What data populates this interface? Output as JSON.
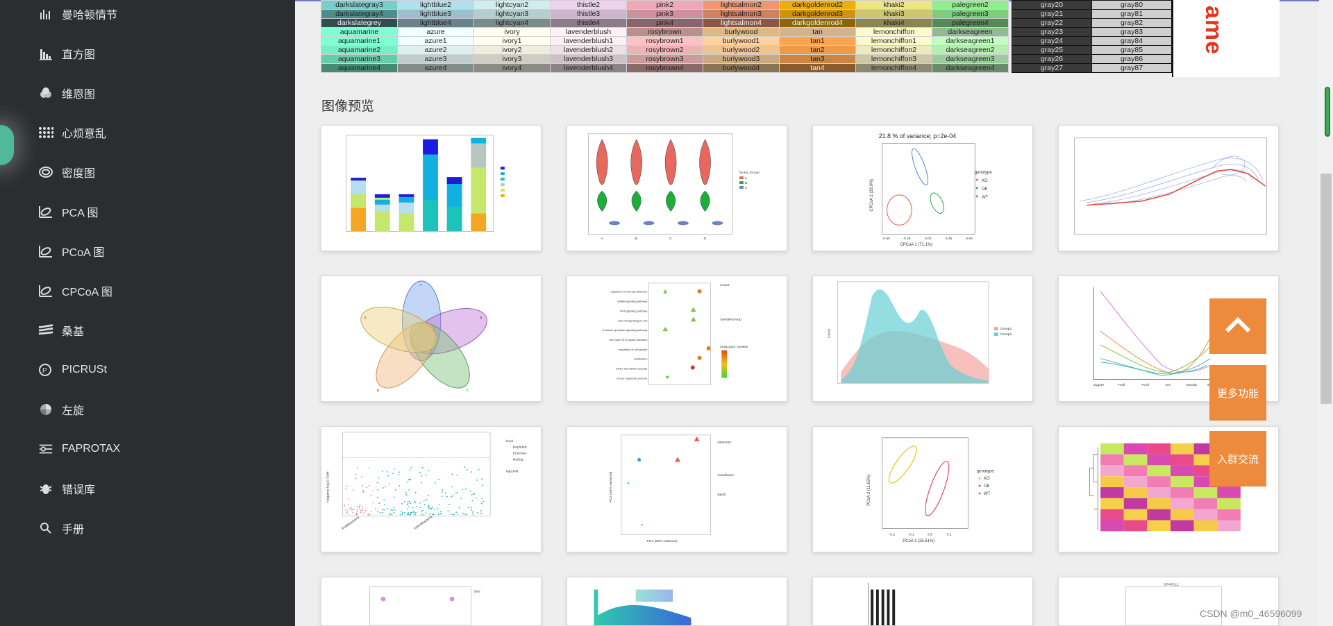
{
  "sidebar": {
    "items": [
      {
        "label": "曼哈顿情节",
        "icon": "manhattan-icon"
      },
      {
        "label": "直方图",
        "icon": "histogram-icon"
      },
      {
        "label": "维恩图",
        "icon": "venn-icon"
      },
      {
        "label": "心烦意乱",
        "icon": "upset-icon"
      },
      {
        "label": "密度图",
        "icon": "density-icon"
      },
      {
        "label": "PCA 图",
        "icon": "pca-icon"
      },
      {
        "label": "PCoA 图",
        "icon": "pcoa-icon"
      },
      {
        "label": "CPCoA 图",
        "icon": "cpcoa-icon"
      },
      {
        "label": "桑基",
        "icon": "sankey-icon"
      },
      {
        "label": "PICRUSt",
        "icon": "picrust-icon"
      },
      {
        "label": "左旋",
        "icon": "circos-icon"
      },
      {
        "label": "FAPROTAX",
        "icon": "faprotax-icon"
      },
      {
        "label": "错误库",
        "icon": "bug-icon"
      },
      {
        "label": "手册",
        "icon": "search-icon"
      }
    ]
  },
  "color_table": {
    "rows": [
      [
        {
          "t": "darkslategray3",
          "c": "#79cdcd"
        },
        {
          "t": "lightblue2",
          "c": "#b2dfee"
        },
        {
          "t": "lightcyan2",
          "c": "#d1eeee"
        },
        {
          "t": "thistle2",
          "c": "#eed2ee"
        },
        {
          "t": "pink2",
          "c": "#eea9b8"
        },
        {
          "t": "lightsalmon2",
          "c": "#ee9572"
        },
        {
          "t": "darkgoldenrod2",
          "c": "#eead0e"
        },
        {
          "t": "khaki2",
          "c": "#eee685"
        },
        {
          "t": "palegreen2",
          "c": "#90ee90"
        }
      ],
      [
        {
          "t": "darkslategray4",
          "c": "#528b8b"
        },
        {
          "t": "lightblue3",
          "c": "#9ac0cd"
        },
        {
          "t": "lightcyan3",
          "c": "#b4cdcd"
        },
        {
          "t": "thistle3",
          "c": "#cdb5cd"
        },
        {
          "t": "pink3",
          "c": "#cd919e"
        },
        {
          "t": "lightsalmon3",
          "c": "#cd8162"
        },
        {
          "t": "darkgoldenrod3",
          "c": "#cd950c"
        },
        {
          "t": "khaki3",
          "c": "#cdc673"
        },
        {
          "t": "palegreen3",
          "c": "#7ccd7c"
        }
      ],
      [
        {
          "t": "darkslategrey",
          "c": "#2f4f4f"
        },
        {
          "t": "lightblue4",
          "c": "#68838b"
        },
        {
          "t": "lightcyan4",
          "c": "#7a8b8b"
        },
        {
          "t": "thistle4",
          "c": "#8b7b8b"
        },
        {
          "t": "pink4",
          "c": "#8b636c"
        },
        {
          "t": "lightsalmon4",
          "c": "#8b5742"
        },
        {
          "t": "darkgoldenrod4",
          "c": "#8b6508"
        },
        {
          "t": "khaki4",
          "c": "#8b864e"
        },
        {
          "t": "palegreen4",
          "c": "#548b54"
        }
      ],
      [
        {
          "t": "aquamarine",
          "c": "#7fffd4"
        },
        {
          "t": "azure",
          "c": "#f0ffff"
        },
        {
          "t": "ivory",
          "c": "#fffff0"
        },
        {
          "t": "lavenderblush",
          "c": "#fff0f5"
        },
        {
          "t": "rosybrown",
          "c": "#bc8f8f"
        },
        {
          "t": "burlywood",
          "c": "#deb887"
        },
        {
          "t": "tan",
          "c": "#d2b48c"
        },
        {
          "t": "lemonchiffon",
          "c": "#fffacd"
        },
        {
          "t": "darkseagreen",
          "c": "#8fbc8f"
        }
      ],
      [
        {
          "t": "aquamarine1",
          "c": "#7fffd4"
        },
        {
          "t": "azure1",
          "c": "#f0ffff"
        },
        {
          "t": "ivory1",
          "c": "#fffff0"
        },
        {
          "t": "lavenderblush1",
          "c": "#fff0f5"
        },
        {
          "t": "rosybrown1",
          "c": "#ffc1c1"
        },
        {
          "t": "burlywood1",
          "c": "#ffd39b"
        },
        {
          "t": "tan1",
          "c": "#ffa54f"
        },
        {
          "t": "lemonchiffon1",
          "c": "#fffacd"
        },
        {
          "t": "darkseagreen1",
          "c": "#c1ffc1"
        }
      ],
      [
        {
          "t": "aquamarine2",
          "c": "#76eec6"
        },
        {
          "t": "azure2",
          "c": "#e0eeee"
        },
        {
          "t": "ivory2",
          "c": "#eeeee0"
        },
        {
          "t": "lavenderblush2",
          "c": "#eee0e5"
        },
        {
          "t": "rosybrown2",
          "c": "#eeb4b4"
        },
        {
          "t": "burlywood2",
          "c": "#eec591"
        },
        {
          "t": "tan2",
          "c": "#ee9a49"
        },
        {
          "t": "lemonchiffon2",
          "c": "#eee9bf"
        },
        {
          "t": "darkseagreen2",
          "c": "#b4eeb4"
        }
      ],
      [
        {
          "t": "aquamarine3",
          "c": "#66cdaa"
        },
        {
          "t": "azure3",
          "c": "#c1cdcd"
        },
        {
          "t": "ivory3",
          "c": "#cdcdc1"
        },
        {
          "t": "lavenderblush3",
          "c": "#cdc1c5"
        },
        {
          "t": "rosybrown3",
          "c": "#cd9b9b"
        },
        {
          "t": "burlywood3",
          "c": "#cdaa7d"
        },
        {
          "t": "tan3",
          "c": "#cd853f"
        },
        {
          "t": "lemonchiffon3",
          "c": "#cdc9a5"
        },
        {
          "t": "darkseagreen3",
          "c": "#9bcd9b"
        }
      ],
      [
        {
          "t": "aquamarine4",
          "c": "#458b74"
        },
        {
          "t": "azure4",
          "c": "#838b8b"
        },
        {
          "t": "ivory4",
          "c": "#8b8b83"
        },
        {
          "t": "lavenderblush4",
          "c": "#8b8386"
        },
        {
          "t": "rosybrown4",
          "c": "#8b6969"
        },
        {
          "t": "burlywood4",
          "c": "#8b7355"
        },
        {
          "t": "tan4",
          "c": "#8b5a2b"
        },
        {
          "t": "lemonchiffon4",
          "c": "#8b8970"
        },
        {
          "t": "darkseagreen4",
          "c": "#698b69"
        }
      ]
    ]
  },
  "gray_table": {
    "rows": [
      [
        "gray20",
        "gray80"
      ],
      [
        "gray21",
        "gray81"
      ],
      [
        "gray22",
        "gray82"
      ],
      [
        "gray23",
        "gray83"
      ],
      [
        "gray24",
        "gray84"
      ],
      [
        "gray25",
        "gray85"
      ],
      [
        "gray26",
        "gray86"
      ],
      [
        "gray27",
        "gray87"
      ]
    ]
  },
  "name_box_text": "ame",
  "section_title": "图像预览",
  "cards": {
    "c2": {
      "legend_title": "factor_Group",
      "legend": [
        "A",
        "B",
        "C"
      ],
      "xticks": [
        "A",
        "B",
        "C",
        "D"
      ]
    },
    "c3": {
      "title": "21.8 % of variance; p=2e-04",
      "xlabel": "CPCoA 1 (71.1%)",
      "ylabel": "CPCoA 2 (28.9%)",
      "legend_title": "genotype",
      "legend": [
        "KO",
        "OE",
        "WT"
      ],
      "xticks": [
        "-0.50",
        "-0.25",
        "0.00",
        "0.25",
        "0.50"
      ],
      "yticks": [
        "0.2",
        "0.0",
        "-0.2",
        "-0.4"
      ]
    },
    "c5": {
      "labels": [
        "A",
        "B",
        "C",
        "D",
        "E"
      ]
    },
    "c6": {
      "terms": [
        "regulation of cell-cell adhesion",
        "ERBB signaling pathway",
        "Wnt signaling pathway",
        "cell-cell signaling by wnt",
        "Extrinsic apoptotic signaling pathway",
        "cell cycle G1/S phase transition",
        "regulation of cell growth",
        "ossification",
        "ERK1 and ERK2 cascade",
        "neuron apoptotic process"
      ],
      "legend_count": "Count",
      "legend_group": "SampleGroup",
      "legend_q": "negLog10_Qvalue"
    },
    "c7": {
      "ylabel": "Count",
      "legend": [
        "Group1",
        "Group2"
      ]
    },
    "c8": {
      "xticks": [
        "Zygote",
        "Fcell",
        "Fcell",
        "EN",
        "Morula",
        "ICM"
      ]
    },
    "c9": {
      "ylabel": "Negative log10 FDR",
      "legend_title": "level",
      "legend": [
        "Depleted",
        "Enriched",
        "NotSig"
      ],
      "legend2_title": "logCPM",
      "xticks": [
        "Acidobacteria",
        "Actinobacteria"
      ]
    },
    "c10": {
      "xlabel": "PC1 (50% variance)",
      "ylabel": "PC2 (16% variance)",
      "legend_title": "Diameter",
      "legend2_title": "Conditions",
      "legend3_title": "Batch"
    },
    "c11": {
      "xlabel": "PCoA 1 (25.51%)",
      "ylabel": "PCoA 2 (11.63%)",
      "legend_title": "genotype",
      "legend": [
        "KO",
        "OE",
        "WT"
      ],
      "xticks": [
        "-0.2",
        "-0.1",
        "0.0",
        "0.1"
      ]
    },
    "c13": {
      "legend_title": "Size"
    },
    "c16": {
      "title": "SPARCL1"
    }
  },
  "fab": {
    "up_icon": "chevron-up-icon",
    "more": "更多功能",
    "group": "入群交流"
  },
  "watermark": "CSDN @m0_46596099"
}
